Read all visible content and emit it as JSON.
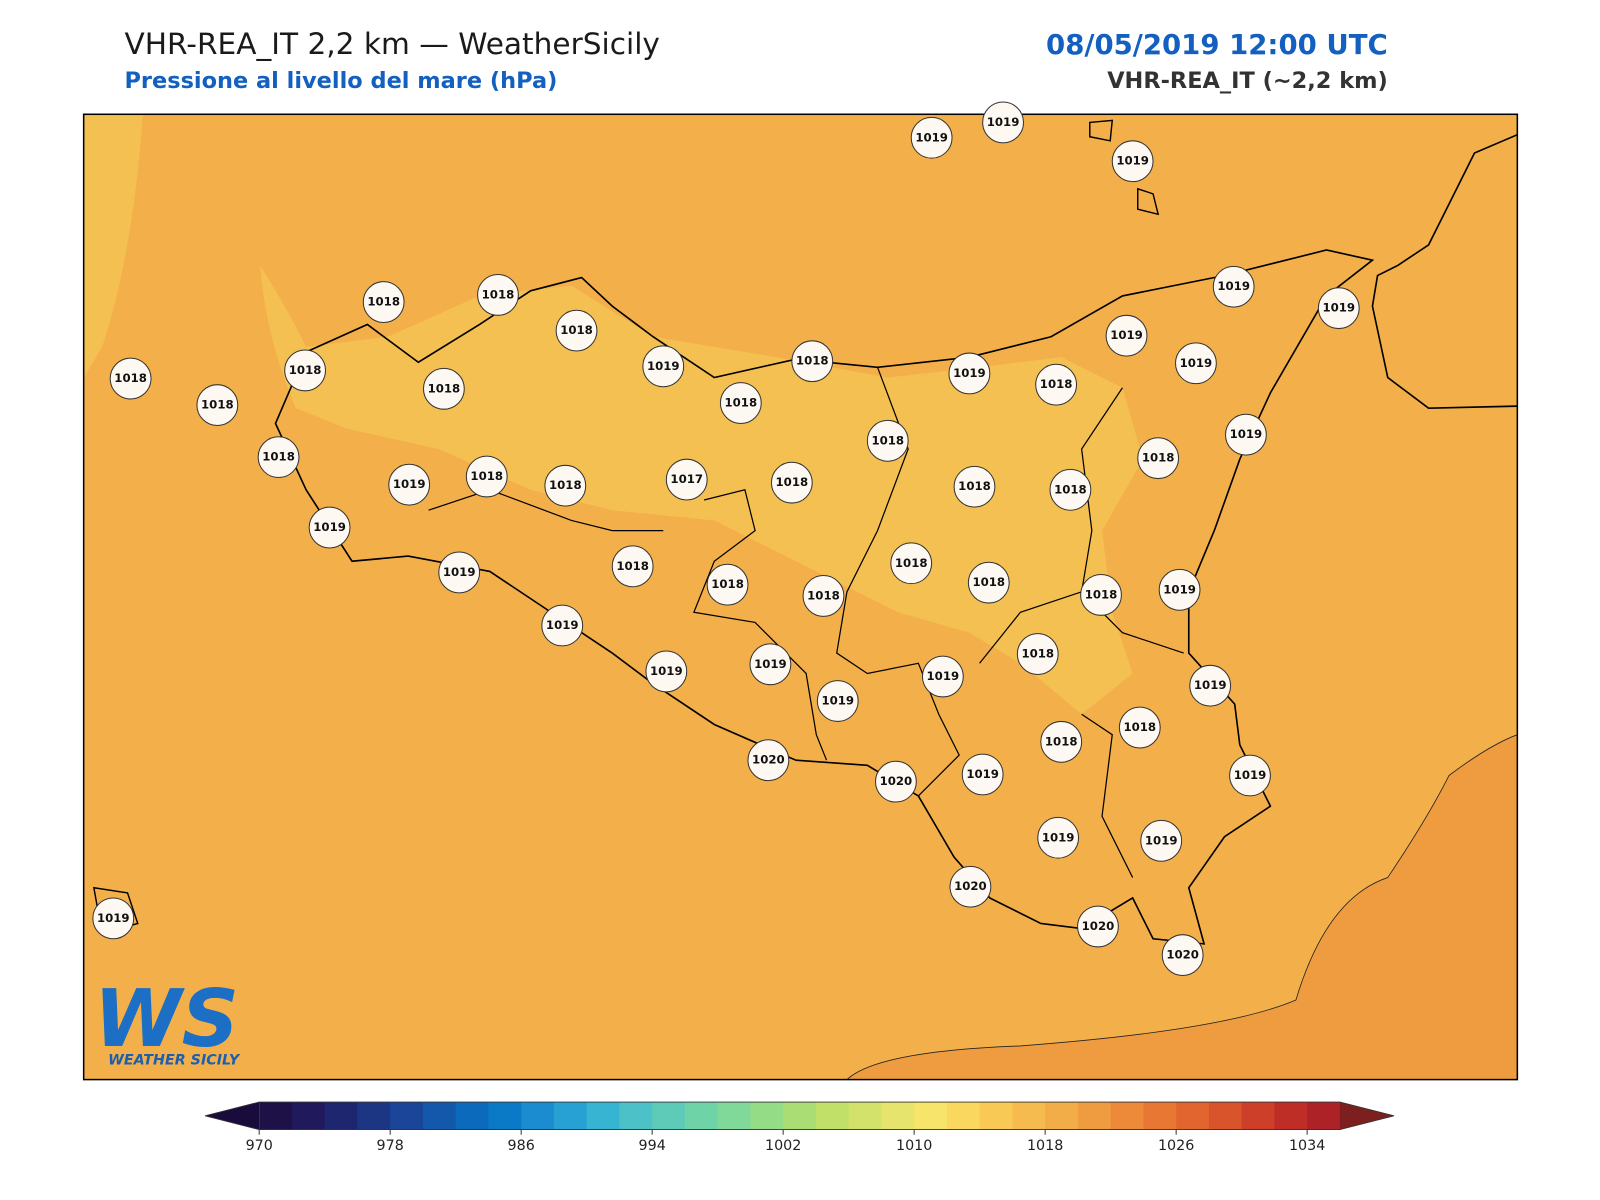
{
  "header": {
    "title": "VHR-REA_IT 2,2 km — WeatherSicily",
    "subtitle": "Pressione al livello del mare (hPa)",
    "datetime": "08/05/2019 12:00 UTC",
    "model": "VHR-REA_IT (~2,2 km)"
  },
  "logo": {
    "mark": "WS",
    "name": "WEATHER SICILY"
  },
  "stations": [
    1019,
    1019,
    1019,
    1019,
    1019,
    1018,
    1018,
    1018,
    1019,
    1018,
    1019,
    1019,
    1018,
    1018,
    1018,
    1018,
    1018,
    1019,
    1018,
    1019,
    1018,
    1018,
    1019,
    1018,
    1018,
    1017,
    1018,
    1018,
    1018,
    1018,
    1019,
    1019,
    1018,
    1018,
    1018,
    1018,
    1018,
    1018,
    1019,
    1019,
    1019,
    1019,
    1019,
    1019,
    1018,
    1019,
    1018,
    1018,
    1019,
    1020,
    1020,
    1019,
    1019,
    1019,
    1020,
    1020,
    1020,
    1019
  ],
  "colorbar": {
    "ticks": [
      970,
      978,
      986,
      994,
      1002,
      1010,
      1018,
      1026,
      1034
    ],
    "colors": [
      "#1d1148",
      "#201a5c",
      "#1f2670",
      "#1c3684",
      "#1a4598",
      "#1458ab",
      "#0c6abc",
      "#0a7ac6",
      "#1a8ccf",
      "#27a0d4",
      "#36b4d2",
      "#4cc2c8",
      "#5ecbb8",
      "#6fd3a8",
      "#80d899",
      "#95dc86",
      "#aade74",
      "#c0e068",
      "#d2e26a",
      "#e6e46c",
      "#f7e46a",
      "#fad860",
      "#f8ca55",
      "#f5bb4e",
      "#f2ac48",
      "#ef9c40",
      "#ec8a3a",
      "#e87734",
      "#e2652f",
      "#d9532b",
      "#cd3f29",
      "#bf2d27",
      "#ad2226"
    ],
    "extend_colors": [
      "#1a0b3d",
      "#7d1f1f"
    ]
  }
}
